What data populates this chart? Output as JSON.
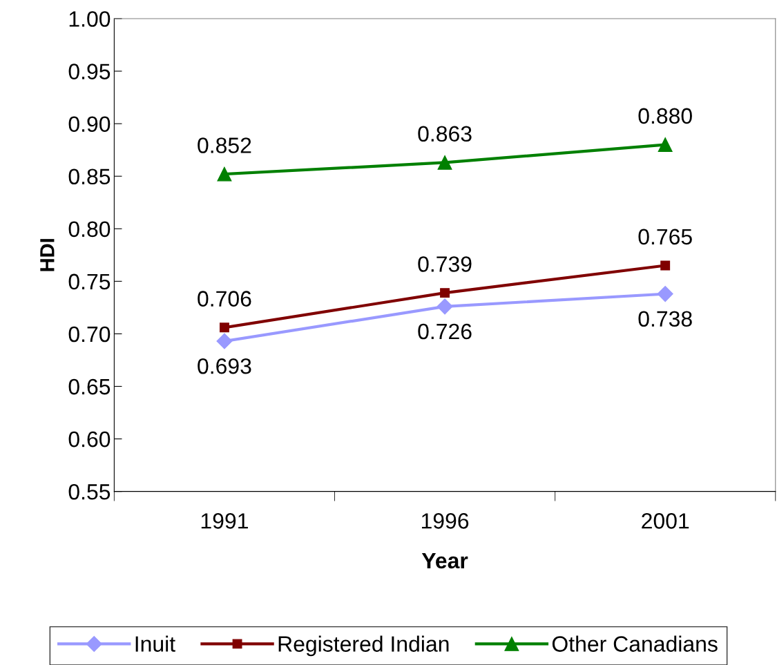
{
  "chart_data": {
    "type": "line",
    "xlabel": "Year",
    "ylabel": "HDI",
    "categories": [
      "1991",
      "1996",
      "2001"
    ],
    "ylim": [
      0.55,
      1.0
    ],
    "yticks": [
      {
        "value": 0.55,
        "label": "0.55"
      },
      {
        "value": 0.6,
        "label": "0.60"
      },
      {
        "value": 0.65,
        "label": "0.65"
      },
      {
        "value": 0.7,
        "label": "0.70"
      },
      {
        "value": 0.75,
        "label": "0.75"
      },
      {
        "value": 0.8,
        "label": "0.80"
      },
      {
        "value": 0.85,
        "label": "0.85"
      },
      {
        "value": 0.9,
        "label": "0.90"
      },
      {
        "value": 0.95,
        "label": "0.95"
      },
      {
        "value": 1.0,
        "label": "1.00"
      }
    ],
    "grid": false,
    "legend": "bottom",
    "series": [
      {
        "name": "Inuit",
        "color": "#9999ff",
        "marker": "diamond",
        "values": [
          0.693,
          0.726,
          0.738
        ],
        "value_labels": [
          "0.693",
          "0.726",
          "0.738"
        ]
      },
      {
        "name": "Registered Indian",
        "color": "#800000",
        "marker": "square",
        "values": [
          0.706,
          0.739,
          0.765
        ],
        "value_labels": [
          "0.706",
          "0.739",
          "0.765"
        ]
      },
      {
        "name": "Other Canadians",
        "color": "#008000",
        "marker": "triangle",
        "values": [
          0.852,
          0.863,
          0.88
        ],
        "value_labels": [
          "0.852",
          "0.863",
          "0.880"
        ]
      }
    ]
  }
}
